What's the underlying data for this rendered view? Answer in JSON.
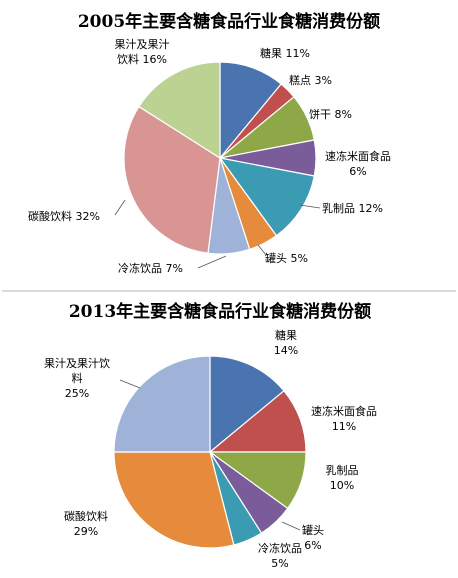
{
  "chart_data": [
    {
      "type": "pie",
      "title": "2005年主要含糖食品行业食糖消费份额",
      "slices": [
        {
          "name": "糖果",
          "value": 11,
          "label": "11%",
          "color": "#4a74b0"
        },
        {
          "name": "糕点",
          "value": 3,
          "label": "3%",
          "color": "#c0504d"
        },
        {
          "name": "饼干",
          "value": 8,
          "label": "8%",
          "color": "#8ea848"
        },
        {
          "name": "速冻米面食品",
          "value": 6,
          "label": "6%",
          "color": "#7a5c9a"
        },
        {
          "name": "乳制品",
          "value": 12,
          "label": "12%",
          "color": "#3b9bb3"
        },
        {
          "name": "罐头",
          "value": 5,
          "label": "5%",
          "color": "#e68a3c"
        },
        {
          "name": "冷冻饮品",
          "value": 7,
          "label": "7%",
          "color": "#9fb3d8"
        },
        {
          "name": "碳酸饮料",
          "value": 32,
          "label": "32%",
          "color": "#d99593"
        },
        {
          "name": "果汁及果汁饮料",
          "value": 16,
          "label": "16%",
          "color": "#bcd293"
        }
      ]
    },
    {
      "type": "pie",
      "title": "2013年主要含糖食品行业食糖消费份额",
      "slices": [
        {
          "name": "糖果",
          "value": 14,
          "label": "14%",
          "color": "#4a74b0"
        },
        {
          "name": "速冻米面食品",
          "value": 11,
          "label": "11%",
          "color": "#c0504d"
        },
        {
          "name": "乳制品",
          "value": 10,
          "label": "10%",
          "color": "#8ea848"
        },
        {
          "name": "罐头",
          "value": 6,
          "label": "6%",
          "color": "#7a5c9a"
        },
        {
          "name": "冷冻饮品",
          "value": 5,
          "label": "5%",
          "color": "#3b9bb3"
        },
        {
          "name": "碳酸饮料",
          "value": 29,
          "label": "29%",
          "color": "#e68a3c"
        },
        {
          "name": "果汁及果汁饮料",
          "value": 25,
          "label": "25%",
          "color": "#9fb3d8"
        }
      ]
    }
  ],
  "separator_color": "#cfcfcf"
}
